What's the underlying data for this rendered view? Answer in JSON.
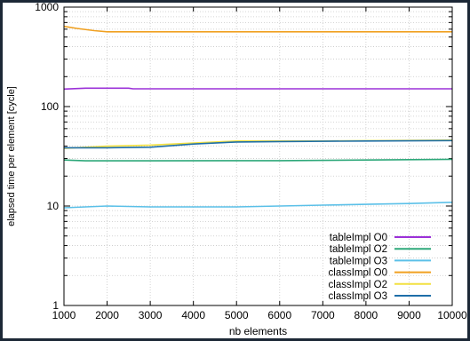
{
  "chart_data": {
    "type": "line",
    "title": "",
    "xlabel": "nb elements",
    "ylabel": "elapsed time per element [cycle]",
    "xlim": [
      1000,
      10000
    ],
    "ylim": [
      1,
      1000
    ],
    "yscale": "log",
    "grid": true,
    "legend_position": "bottom-right",
    "x_ticks": [
      1000,
      2000,
      3000,
      4000,
      5000,
      6000,
      7000,
      8000,
      9000,
      10000
    ],
    "x_tick_labels": [
      "1000",
      "2000",
      "3000",
      "4000",
      "5000",
      "6000",
      "7000",
      "8000",
      "9000",
      "10000"
    ],
    "y_ticks": [
      1,
      10,
      100,
      1000
    ],
    "y_tick_labels": [
      "1",
      "10",
      "100",
      "1000"
    ],
    "series": [
      {
        "name": "tableImpl O0",
        "color": "#9b30d8",
        "points": [
          [
            1000,
            150
          ],
          [
            1500,
            153
          ],
          [
            2500,
            153
          ],
          [
            2600,
            151
          ],
          [
            10000,
            151
          ]
        ]
      },
      {
        "name": "tableImpl O2",
        "color": "#2ea87a",
        "points": [
          [
            1000,
            29
          ],
          [
            1500,
            28.5
          ],
          [
            3000,
            28.5
          ],
          [
            6000,
            28.6
          ],
          [
            8000,
            29
          ],
          [
            10000,
            29.5
          ]
        ]
      },
      {
        "name": "tableImpl O3",
        "color": "#5bc0e8",
        "points": [
          [
            1000,
            9.6
          ],
          [
            1500,
            9.8
          ],
          [
            2000,
            10
          ],
          [
            3000,
            9.8
          ],
          [
            5000,
            9.8
          ],
          [
            6000,
            10
          ],
          [
            7000,
            10.2
          ],
          [
            8000,
            10.4
          ],
          [
            9000,
            10.6
          ],
          [
            10000,
            10.9
          ]
        ]
      },
      {
        "name": "classImpl O0",
        "color": "#f0a020",
        "points": [
          [
            1000,
            640
          ],
          [
            1300,
            610
          ],
          [
            1700,
            580
          ],
          [
            2000,
            565
          ],
          [
            10000,
            565
          ]
        ]
      },
      {
        "name": "classImpl O2",
        "color": "#f2e040",
        "points": [
          [
            1000,
            38
          ],
          [
            2000,
            40
          ],
          [
            3000,
            41
          ],
          [
            4000,
            43
          ],
          [
            5000,
            45
          ],
          [
            7000,
            45
          ],
          [
            10000,
            46
          ]
        ]
      },
      {
        "name": "classImpl O3",
        "color": "#1e6ea8",
        "points": [
          [
            1000,
            38.5
          ],
          [
            2000,
            38.5
          ],
          [
            3000,
            39
          ],
          [
            4000,
            42
          ],
          [
            5000,
            44
          ],
          [
            6000,
            44.5
          ],
          [
            8000,
            45
          ],
          [
            10000,
            45.5
          ]
        ]
      }
    ]
  }
}
